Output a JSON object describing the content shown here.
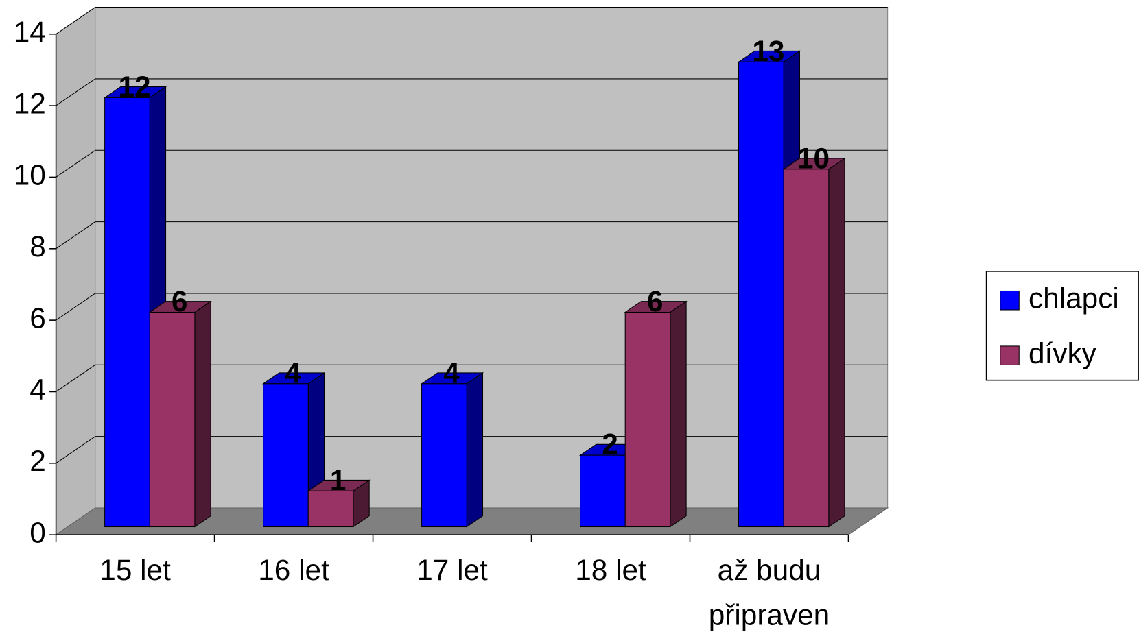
{
  "chart_data": {
    "type": "bar3d",
    "categories": [
      "15 let",
      "16 let",
      "17 let",
      "18 let",
      "až budu připraven"
    ],
    "series": [
      {
        "name": "chlapci",
        "color": "#0000ff",
        "values": [
          12,
          4,
          4,
          2,
          13
        ]
      },
      {
        "name": "dívky",
        "color": "#993366",
        "values": [
          6,
          1,
          null,
          6,
          10
        ]
      }
    ],
    "ylim": [
      0,
      14
    ],
    "yticks": [
      0,
      2,
      4,
      6,
      8,
      10,
      12,
      14
    ],
    "grid": true,
    "legend": "right"
  }
}
